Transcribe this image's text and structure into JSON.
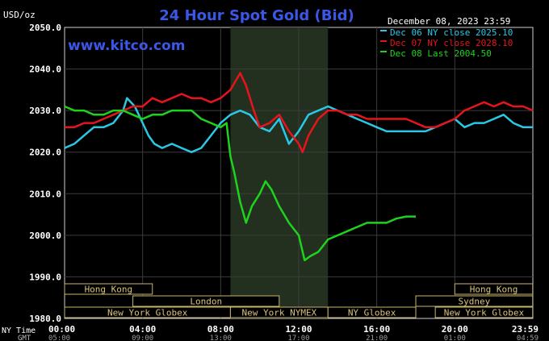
{
  "header": {
    "title": "24 Hour Spot Gold (Bid)",
    "units": "USD/oz",
    "site": "www.kitco.com",
    "datetime": "December 08, 2023 23:59"
  },
  "legend": [
    {
      "label": "Dec 06 NY close 2025.10",
      "color": "#2bc8e6"
    },
    {
      "label": "Dec 07 NY close 2028.10",
      "color": "#e8141c"
    },
    {
      "label": "Dec 08 Last 2004.50",
      "color": "#1ed21e"
    }
  ],
  "axis": {
    "ny_time_label": "NY Time",
    "gmt_label": "GMT",
    "x_ticks": [
      "00:00",
      "04:00",
      "08:00",
      "12:00",
      "16:00",
      "20:00",
      "23:59"
    ],
    "gmt_ticks": [
      "05:00",
      "09:00",
      "13:00",
      "17:00",
      "21:00",
      "01:00",
      "04:59"
    ],
    "y_ticks": [
      "2050.0",
      "2040.0",
      "2030.0",
      "2020.0",
      "2010.0",
      "2000.0",
      "1990.0",
      "1980.0"
    ]
  },
  "sessions": [
    {
      "label": "Hong Kong",
      "start": 0.0,
      "end": 4.5,
      "row": 0
    },
    {
      "label": "Hong Kong",
      "start": 20.0,
      "end": 23.99,
      "row": 0
    },
    {
      "label": "London",
      "start": 3.5,
      "end": 11.0,
      "row": 1
    },
    {
      "label": "Sydney",
      "start": 18.0,
      "end": 23.99,
      "row": 1
    },
    {
      "label": "New York Globex",
      "start": 0.0,
      "end": 8.5,
      "row": 2
    },
    {
      "label": "New York NYMEX",
      "start": 8.5,
      "end": 13.5,
      "row": 2
    },
    {
      "label": "NY Globex",
      "start": 13.5,
      "end": 18.0,
      "row": 2
    },
    {
      "label": "New York Globex",
      "start": 19.0,
      "end": 23.99,
      "row": 2
    }
  ],
  "chart_data": {
    "type": "line",
    "title": "24 Hour Spot Gold (Bid)",
    "ylabel": "USD/oz",
    "xlabel": "NY Time",
    "xlim": [
      0,
      24
    ],
    "ylim": [
      1980,
      2050
    ],
    "grid": true,
    "legend_position": "top-right",
    "highlight_range": [
      8.5,
      13.5
    ],
    "series": [
      {
        "name": "Dec 06 NY close 2025.10",
        "color": "#2bc8e6",
        "x": [
          0,
          0.5,
          1,
          1.5,
          2,
          2.5,
          3,
          3.2,
          3.6,
          4,
          4.3,
          4.6,
          5,
          5.5,
          6,
          6.5,
          7,
          7.5,
          8,
          8.5,
          9,
          9.5,
          10,
          10.5,
          11,
          11.5,
          12,
          12.5,
          13,
          13.5,
          14,
          14.5,
          15,
          15.5,
          16,
          16.5,
          17,
          17.5,
          18,
          18.5,
          19,
          19.5,
          20,
          20.5,
          21,
          21.5,
          22,
          22.5,
          23,
          23.5,
          24
        ],
        "y": [
          2021,
          2022,
          2024,
          2026,
          2026,
          2027,
          2030,
          2033,
          2031,
          2027,
          2024,
          2022,
          2021,
          2022,
          2021,
          2020,
          2021,
          2024,
          2027,
          2029,
          2030,
          2029,
          2026,
          2025,
          2028,
          2022,
          2025,
          2029,
          2030,
          2031,
          2030,
          2029,
          2028,
          2027,
          2026,
          2025,
          2025,
          2025,
          2025,
          2025,
          2026,
          2027,
          2028,
          2026,
          2027,
          2027,
          2028,
          2029,
          2027,
          2026,
          2026
        ]
      },
      {
        "name": "Dec 07 NY close 2028.10",
        "color": "#e8141c",
        "x": [
          0,
          0.5,
          1,
          1.5,
          2,
          2.5,
          3,
          3.5,
          4,
          4.5,
          5,
          5.5,
          6,
          6.5,
          7,
          7.5,
          8,
          8.5,
          9,
          9.3,
          9.7,
          10,
          10.5,
          11,
          11.5,
          12,
          12.2,
          12.5,
          13,
          13.5,
          14,
          14.5,
          15,
          15.5,
          16,
          16.5,
          17,
          17.5,
          18,
          18.5,
          19,
          19.5,
          20,
          20.5,
          21,
          21.5,
          22,
          22.5,
          23,
          23.5,
          24
        ],
        "y": [
          2026,
          2026,
          2027,
          2027,
          2028,
          2029,
          2030,
          2031,
          2031,
          2033,
          2032,
          2033,
          2034,
          2033,
          2033,
          2032,
          2033,
          2035,
          2039,
          2036,
          2030,
          2026,
          2027,
          2029,
          2025,
          2022,
          2020,
          2024,
          2028,
          2030,
          2030,
          2029,
          2029,
          2028,
          2028,
          2028,
          2028,
          2028,
          2027,
          2026,
          2026,
          2027,
          2028,
          2030,
          2031,
          2032,
          2031,
          2032,
          2031,
          2031,
          2030
        ]
      },
      {
        "name": "Dec 08 Last 2004.50",
        "color": "#1ed21e",
        "x": [
          0,
          0.5,
          1,
          1.5,
          2,
          2.5,
          3,
          3.5,
          4,
          4.5,
          5,
          5.5,
          6,
          6.5,
          7,
          7.5,
          8,
          8.3,
          8.5,
          8.7,
          9,
          9.3,
          9.6,
          10,
          10.3,
          10.6,
          11,
          11.5,
          12,
          12.3,
          12.6,
          13,
          13.5,
          14,
          14.5,
          15,
          15.5,
          16,
          16.5,
          17,
          17.5,
          18
        ],
        "y": [
          2031,
          2030,
          2030,
          2029,
          2029,
          2030,
          2030,
          2029,
          2028,
          2029,
          2029,
          2030,
          2030,
          2030,
          2028,
          2027,
          2026,
          2027,
          2019,
          2015,
          2008,
          2003,
          2007,
          2010,
          2013,
          2011,
          2007,
          2003,
          2000,
          1994,
          1995,
          1996,
          1999,
          2000,
          2001,
          2002,
          2003,
          2003,
          2003,
          2004,
          2004.5,
          2004.5
        ]
      }
    ]
  }
}
